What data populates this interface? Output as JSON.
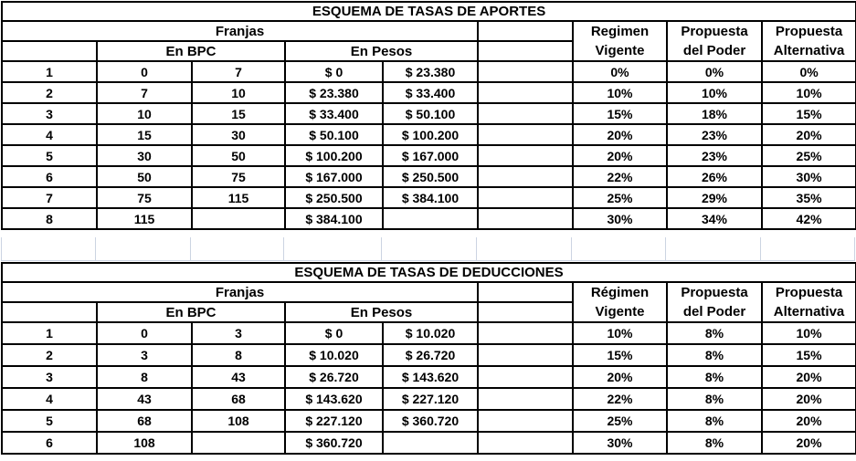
{
  "colors": {
    "border": "#000000",
    "gridline": "#ccd4e2",
    "text": "#000000",
    "background": "#ffffff"
  },
  "labels": {
    "franjas": "Franjas",
    "en_bpc": "En BPC",
    "en_pesos": "En Pesos"
  },
  "aportes": {
    "title": "ESQUEMA DE TASAS DE APORTES",
    "headers": {
      "regimen": {
        "line1": "Regimen",
        "line2": "Vigente"
      },
      "poder": {
        "line1": "Propuesta",
        "line2": "del Poder"
      },
      "alternativa": {
        "line1": "Propuesta",
        "line2": "Alternativa"
      }
    },
    "rows": [
      {
        "n": "1",
        "bpc_from": "0",
        "bpc_to": "7",
        "pesos_from": "$ 0",
        "pesos_to": "$ 23.380",
        "vigente": "0%",
        "poder": "0%",
        "alternativa": "0%"
      },
      {
        "n": "2",
        "bpc_from": "7",
        "bpc_to": "10",
        "pesos_from": "$ 23.380",
        "pesos_to": "$ 33.400",
        "vigente": "10%",
        "poder": "10%",
        "alternativa": "10%"
      },
      {
        "n": "3",
        "bpc_from": "10",
        "bpc_to": "15",
        "pesos_from": "$ 33.400",
        "pesos_to": "$ 50.100",
        "vigente": "15%",
        "poder": "18%",
        "alternativa": "15%"
      },
      {
        "n": "4",
        "bpc_from": "15",
        "bpc_to": "30",
        "pesos_from": "$ 50.100",
        "pesos_to": "$ 100.200",
        "vigente": "20%",
        "poder": "23%",
        "alternativa": "20%"
      },
      {
        "n": "5",
        "bpc_from": "30",
        "bpc_to": "50",
        "pesos_from": "$ 100.200",
        "pesos_to": "$ 167.000",
        "vigente": "20%",
        "poder": "23%",
        "alternativa": "25%"
      },
      {
        "n": "6",
        "bpc_from": "50",
        "bpc_to": "75",
        "pesos_from": "$ 167.000",
        "pesos_to": "$ 250.500",
        "vigente": "22%",
        "poder": "26%",
        "alternativa": "30%"
      },
      {
        "n": "7",
        "bpc_from": "75",
        "bpc_to": "115",
        "pesos_from": "$ 250.500",
        "pesos_to": "$ 384.100",
        "vigente": "25%",
        "poder": "29%",
        "alternativa": "35%"
      },
      {
        "n": "8",
        "bpc_from": "115",
        "bpc_to": "",
        "pesos_from": "$ 384.100",
        "pesos_to": "",
        "vigente": "30%",
        "poder": "34%",
        "alternativa": "42%"
      }
    ]
  },
  "deducciones": {
    "title": "ESQUEMA DE TASAS DE DEDUCCIONES",
    "headers": {
      "regimen": {
        "line1": "Régimen",
        "line2": "Vigente"
      },
      "poder": {
        "line1": "Propuesta",
        "line2": "del Poder"
      },
      "alternativa": {
        "line1": "Propuesta",
        "line2": "Alternativa"
      }
    },
    "rows": [
      {
        "n": "1",
        "bpc_from": "0",
        "bpc_to": "3",
        "pesos_from": "$ 0",
        "pesos_to": "$ 10.020",
        "vigente": "10%",
        "poder": "8%",
        "alternativa": "10%"
      },
      {
        "n": "2",
        "bpc_from": "3",
        "bpc_to": "8",
        "pesos_from": "$ 10.020",
        "pesos_to": "$ 26.720",
        "vigente": "15%",
        "poder": "8%",
        "alternativa": "15%"
      },
      {
        "n": "3",
        "bpc_from": "8",
        "bpc_to": "43",
        "pesos_from": "$ 26.720",
        "pesos_to": "$ 143.620",
        "vigente": "20%",
        "poder": "8%",
        "alternativa": "20%"
      },
      {
        "n": "4",
        "bpc_from": "43",
        "bpc_to": "68",
        "pesos_from": "$ 143.620",
        "pesos_to": "$ 227.120",
        "vigente": "22%",
        "poder": "8%",
        "alternativa": "20%"
      },
      {
        "n": "5",
        "bpc_from": "68",
        "bpc_to": "108",
        "pesos_from": "$ 227.120",
        "pesos_to": "$ 360.720",
        "vigente": "25%",
        "poder": "8%",
        "alternativa": "20%"
      },
      {
        "n": "6",
        "bpc_from": "108",
        "bpc_to": "",
        "pesos_from": "$ 360.720",
        "pesos_to": "",
        "vigente": "30%",
        "poder": "8%",
        "alternativa": "20%"
      }
    ]
  }
}
